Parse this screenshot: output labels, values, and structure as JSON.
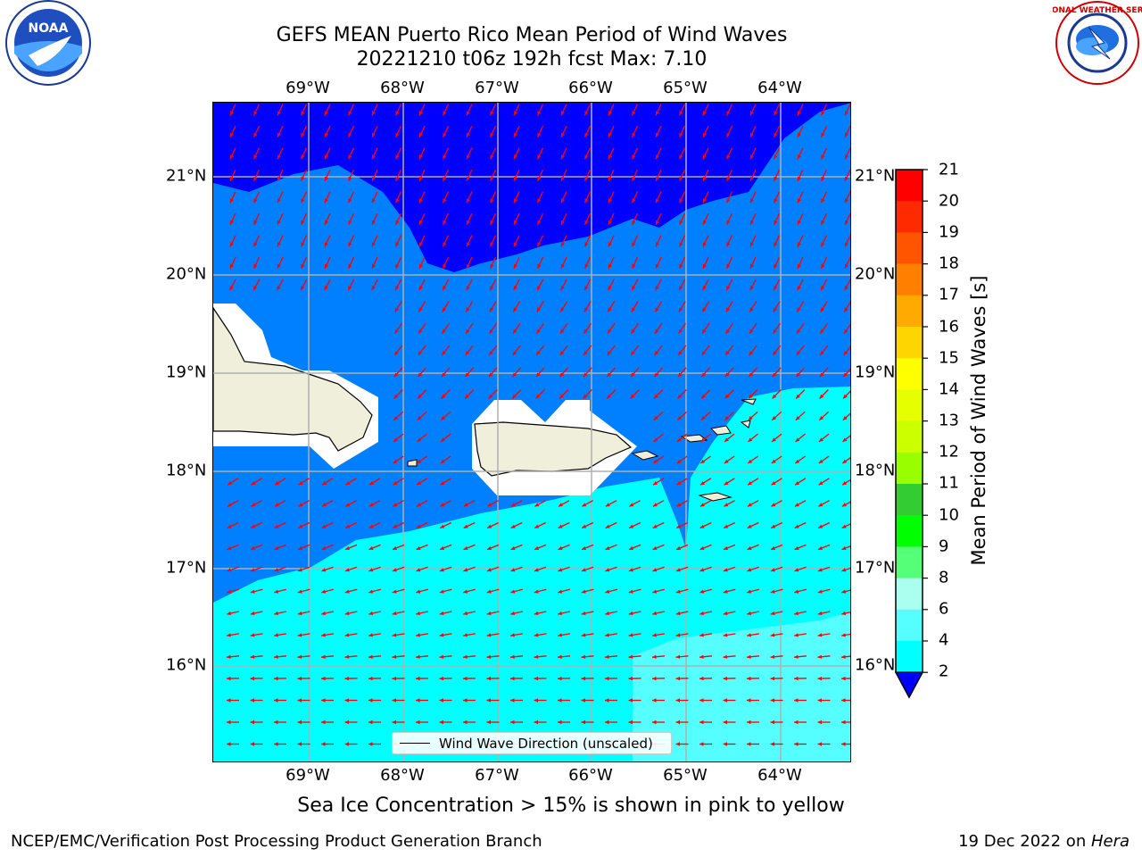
{
  "header": {
    "title_line1": "GEFS MEAN Puerto Rico Mean Period of Wind Waves",
    "title_line2": "20221210 t06z 192h fcst   Max: 7.10"
  },
  "map": {
    "lon_labels": [
      "69°W",
      "68°W",
      "67°W",
      "66°W",
      "65°W",
      "64°W"
    ],
    "lat_labels": [
      "21°N",
      "20°N",
      "19°N",
      "18°N",
      "17°N",
      "16°N"
    ],
    "legend_label": "Wind Wave Direction (unscaled)",
    "arrow_color": "#ff0000",
    "land_color": "#efefdc"
  },
  "colorbar": {
    "label": "Mean Period of Wind Waves [s]",
    "ticks": [
      "21",
      "20",
      "19",
      "18",
      "17",
      "16",
      "15",
      "14",
      "13",
      "12",
      "11",
      "10",
      "9",
      "8",
      "6",
      "4",
      "2"
    ],
    "colors": [
      "#ff0000",
      "#ff2a00",
      "#ff5500",
      "#ff8000",
      "#ffaa00",
      "#ffd500",
      "#ffff00",
      "#e6ff00",
      "#ccff00",
      "#99ff00",
      "#33cc33",
      "#00ff00",
      "#55ff77",
      "#aaffee",
      "#55ffff",
      "#00ffff",
      "#0080ff"
    ],
    "under_color": "#0000ff"
  },
  "notes": {
    "sea_ice": "Sea Ice Concentration > 15% is shown in pink to yellow"
  },
  "footer": {
    "left": "NCEP/EMC/Verification Post Processing Product Generation Branch",
    "right_prefix": "19 Dec 2022 on ",
    "right_machine": "Hera"
  },
  "logos": {
    "noaa": "NOAA",
    "nws": "NATIONAL WEATHER SERVICE"
  }
}
